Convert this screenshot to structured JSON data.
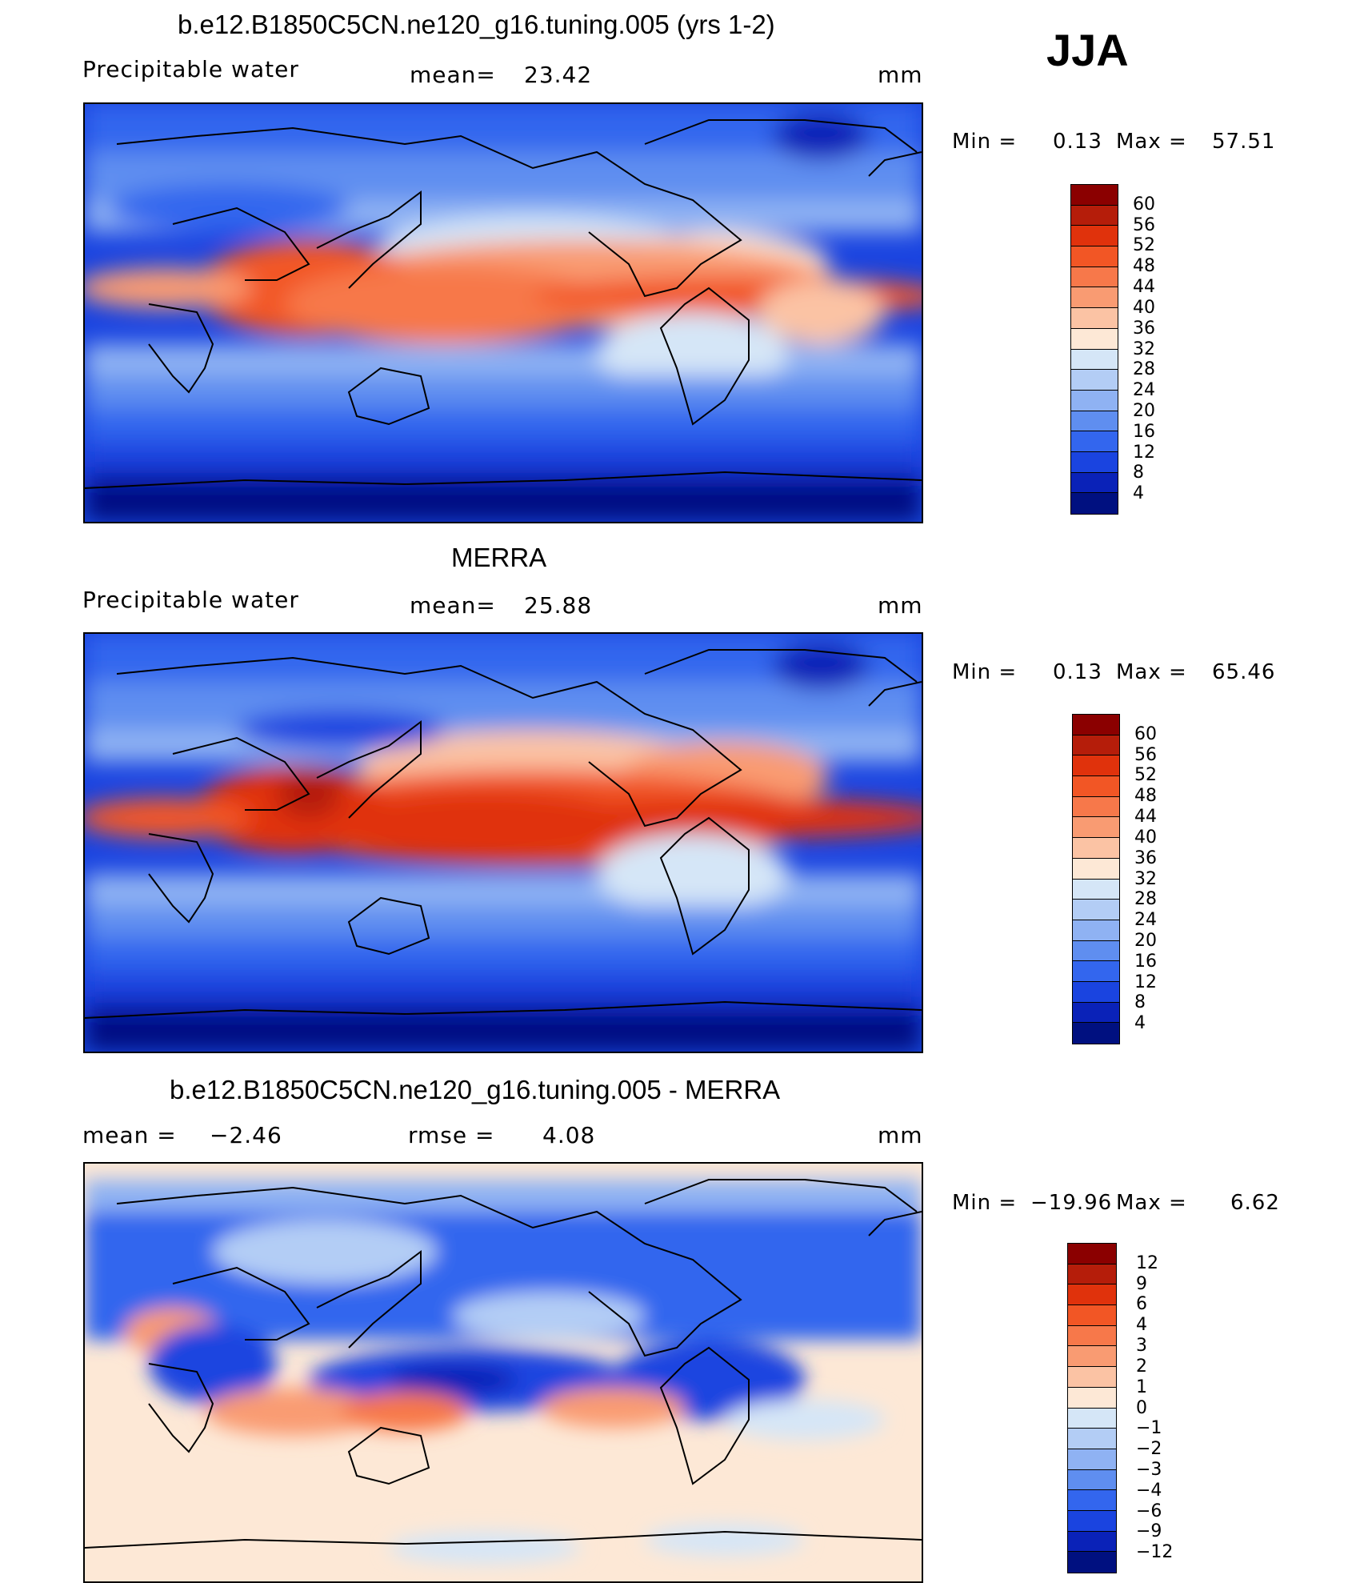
{
  "season": "JJA",
  "panels": [
    {
      "title": "b.e12.B1850C5CN.ne120_g16.tuning.005 (yrs 1-2)",
      "variable": "Precipitable water",
      "stat1_label": "mean=",
      "stat1_value": "23.42",
      "units": "mm",
      "min_label": "Min =",
      "min_value": "0.13",
      "max_label": "Max =",
      "max_value": "57.51",
      "colorbar": {
        "labels": [
          "60",
          "56",
          "52",
          "48",
          "44",
          "40",
          "36",
          "32",
          "28",
          "24",
          "20",
          "16",
          "12",
          "8",
          "4"
        ],
        "colors": [
          "#8b0000",
          "#b51d0a",
          "#e0320c",
          "#f25625",
          "#f7784a",
          "#f99b72",
          "#fbc3a4",
          "#fde8d6",
          "#d5e6f7",
          "#b3cdf5",
          "#8fb2f3",
          "#5f8ef0",
          "#3366ee",
          "#1a44e0",
          "#0a22b8",
          "#001080"
        ]
      },
      "map_field": "model"
    },
    {
      "title": "MERRA",
      "variable": "Precipitable water",
      "stat1_label": "mean=",
      "stat1_value": "25.88",
      "units": "mm",
      "min_label": "Min =",
      "min_value": "0.13",
      "max_label": "Max =",
      "max_value": "65.46",
      "colorbar": {
        "labels": [
          "60",
          "56",
          "52",
          "48",
          "44",
          "40",
          "36",
          "32",
          "28",
          "24",
          "20",
          "16",
          "12",
          "8",
          "4"
        ],
        "colors": [
          "#8b0000",
          "#b51d0a",
          "#e0320c",
          "#f25625",
          "#f7784a",
          "#f99b72",
          "#fbc3a4",
          "#fde8d6",
          "#d5e6f7",
          "#b3cdf5",
          "#8fb2f3",
          "#5f8ef0",
          "#3366ee",
          "#1a44e0",
          "#0a22b8",
          "#001080"
        ]
      },
      "map_field": "obs"
    },
    {
      "title": "b.e12.B1850C5CN.ne120_g16.tuning.005 - MERRA",
      "variable": "",
      "stat1_label": "mean =",
      "stat1_value": "−2.46",
      "stat2_label": "rmse =",
      "stat2_value": "4.08",
      "units": "mm",
      "min_label": "Min =",
      "min_value": "−19.96",
      "max_label": "Max =",
      "max_value": "6.62",
      "colorbar": {
        "labels": [
          "12",
          "9",
          "6",
          "4",
          "3",
          "2",
          "1",
          "0",
          "−1",
          "−2",
          "−3",
          "−4",
          "−6",
          "−9",
          "−12"
        ],
        "colors": [
          "#8b0000",
          "#b51d0a",
          "#e0320c",
          "#f25625",
          "#f7784a",
          "#f99b72",
          "#fbc3a4",
          "#fde8d6",
          "#d5e6f7",
          "#b3cdf5",
          "#8fb2f3",
          "#5f8ef0",
          "#3366ee",
          "#1a44e0",
          "#0a22b8",
          "#001080"
        ]
      },
      "map_field": "diff"
    }
  ]
}
